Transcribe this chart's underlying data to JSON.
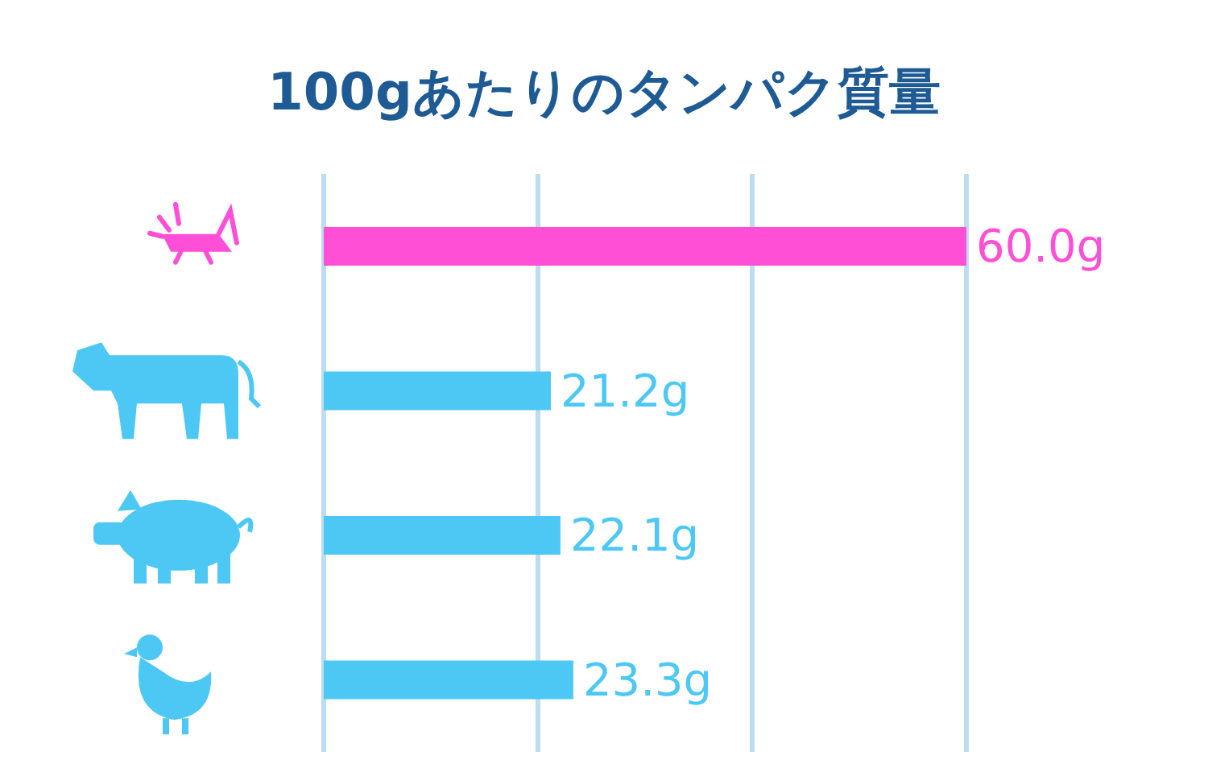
{
  "chart_data": {
    "type": "bar",
    "orientation": "horizontal",
    "title": "100gあたりのタンパク質量",
    "categories": [
      null,
      null,
      null,
      null
    ],
    "values": [
      60.0,
      21.2,
      22.1,
      23.3
    ],
    "colors": [
      "#ff4fd6",
      "#4dc8f4",
      "#4dc8f4",
      "#4dc8f4"
    ],
    "value_labels": [
      "60.0g",
      "21.2g",
      "22.1g",
      "23.3g"
    ],
    "xlim": [
      0,
      60
    ],
    "xticks": [
      0,
      20,
      40,
      60
    ],
    "grid": "x",
    "tick_labels": false
  }
}
